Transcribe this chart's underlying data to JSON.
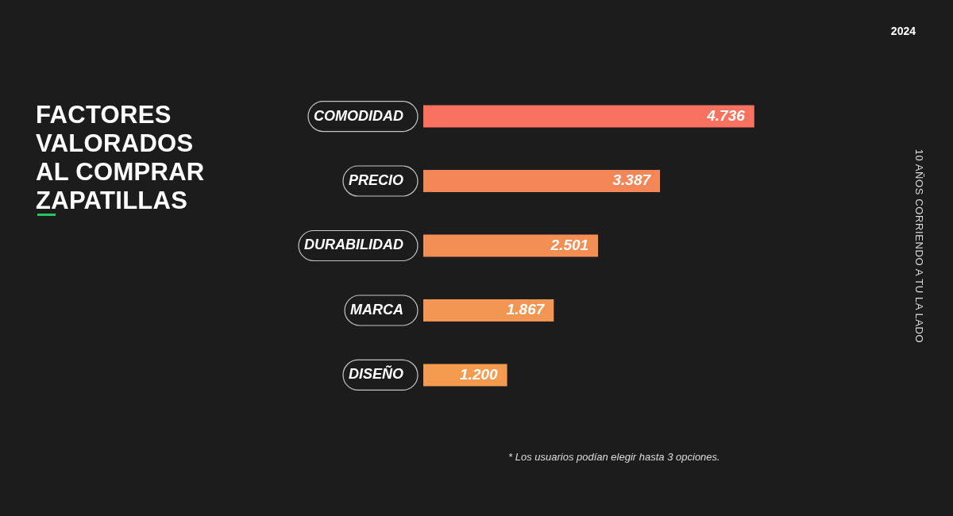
{
  "chart_data": {
    "type": "bar",
    "orientation": "horizontal",
    "title": "FACTORES VALORADOS AL COMPRAR ZAPATILLAS",
    "categories": [
      "COMODIDAD",
      "PRECIO",
      "DURABILIDAD",
      "MARCA",
      "DISEÑO"
    ],
    "values": [
      4736,
      3387,
      2501,
      1867,
      1200
    ],
    "value_labels": [
      "4.736",
      "3.387",
      "2.501",
      "1.867",
      "1.200"
    ],
    "colors": [
      "#f8725f",
      "#f48757",
      "#f38e55",
      "#f39653",
      "#f49b50"
    ],
    "tick_labels": "y",
    "legend": false,
    "annotations": [
      "2024",
      "10 AÑOS CORRIENDO A TU LA LADO",
      "* Los usuarios podían elegir hasta 3 opciones."
    ]
  }
}
